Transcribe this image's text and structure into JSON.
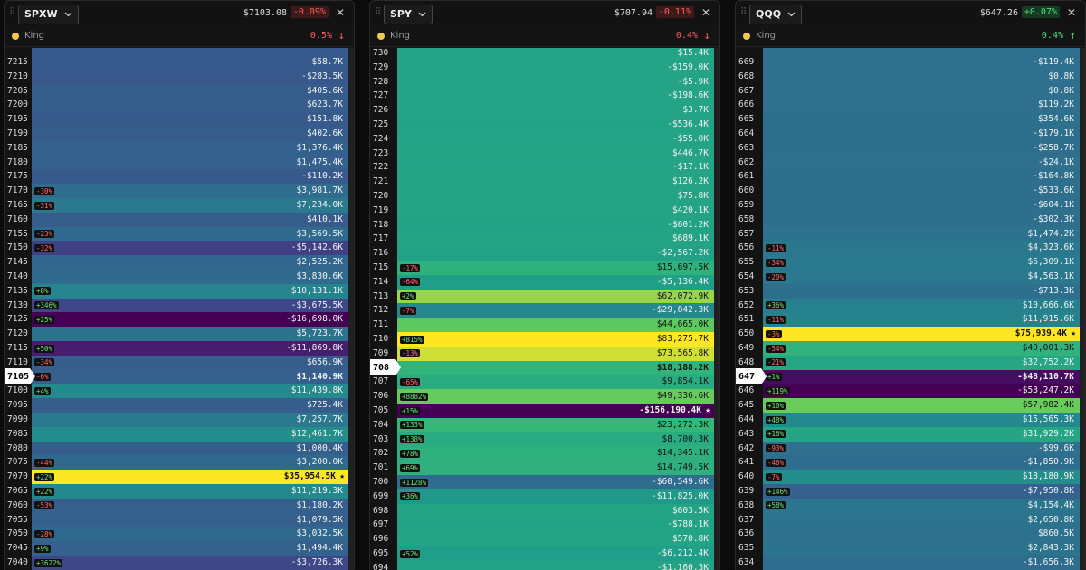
{
  "panels": [
    {
      "ticker": "SPXW",
      "price": "$7103.08",
      "change": "-0.09%",
      "change_dir": "down",
      "king_label": "King",
      "king_value": "0.5%",
      "king_arrow": "↓",
      "king_dir": "down",
      "rows": [
        {
          "strike": 7215,
          "value": "$58.7K"
        },
        {
          "strike": 7210,
          "value": "-$283.5K"
        },
        {
          "strike": 7205,
          "value": "$405.6K"
        },
        {
          "strike": 7200,
          "value": "$623.7K"
        },
        {
          "strike": 7195,
          "value": "$151.8K"
        },
        {
          "strike": 7190,
          "value": "$402.6K"
        },
        {
          "strike": 7185,
          "value": "$1,376.4K"
        },
        {
          "strike": 7180,
          "value": "$1,475.4K"
        },
        {
          "strike": 7175,
          "value": "-$110.2K"
        },
        {
          "strike": 7170,
          "pct": "-30%",
          "value": "$3,981.7K"
        },
        {
          "strike": 7165,
          "pct": "-31%",
          "value": "$7,234.0K"
        },
        {
          "strike": 7160,
          "value": "$410.1K"
        },
        {
          "strike": 7155,
          "pct": "-23%",
          "value": "$3,569.5K"
        },
        {
          "strike": 7150,
          "pct": "-32%",
          "value": "-$5,142.6K"
        },
        {
          "strike": 7145,
          "value": "$2,525.2K"
        },
        {
          "strike": 7140,
          "value": "$3,830.6K"
        },
        {
          "strike": 7135,
          "pct": "+8%",
          "value": "$10,131.1K"
        },
        {
          "strike": 7130,
          "pct": "+346%",
          "value": "-$3,675.5K"
        },
        {
          "strike": 7125,
          "pct": "+25%",
          "value": "-$16,698.0K"
        },
        {
          "strike": 7120,
          "value": "$5,723.7K"
        },
        {
          "strike": 7115,
          "pct": "+50%",
          "value": "-$11,869.8K"
        },
        {
          "strike": 7110,
          "pct": "-34%",
          "value": "$656.9K"
        },
        {
          "strike": 7105,
          "pct": "-6%",
          "value": "$1,140.9K",
          "current": true
        },
        {
          "strike": 7100,
          "pct": "+4%",
          "value": "$11,439.8K"
        },
        {
          "strike": 7095,
          "value": "$725.4K"
        },
        {
          "strike": 7090,
          "value": "$7,257.7K"
        },
        {
          "strike": 7085,
          "value": "$12,461.7K"
        },
        {
          "strike": 7080,
          "value": "$1,000.4K"
        },
        {
          "strike": 7075,
          "pct": "-44%",
          "value": "$3,200.0K"
        },
        {
          "strike": 7070,
          "pct": "+22%",
          "value": "$35,954.5K",
          "king": true
        },
        {
          "strike": 7065,
          "pct": "+22%",
          "value": "$11,219.3K"
        },
        {
          "strike": 7060,
          "pct": "-53%",
          "value": "$1,180.2K"
        },
        {
          "strike": 7055,
          "value": "$1,079.5K"
        },
        {
          "strike": 7050,
          "pct": "-28%",
          "value": "$3,032.5K"
        },
        {
          "strike": 7045,
          "pct": "+9%",
          "value": "$1,494.4K"
        },
        {
          "strike": 7040,
          "pct": "+3622%",
          "value": "-$3,726.3K"
        }
      ]
    },
    {
      "ticker": "SPY",
      "price": "$707.94",
      "change": "-0.11%",
      "change_dir": "down",
      "king_label": "King",
      "king_value": "0.4%",
      "king_arrow": "↓",
      "king_dir": "down",
      "rows": [
        {
          "strike": 730,
          "value": "$15.4K"
        },
        {
          "strike": 729,
          "value": "-$159.0K"
        },
        {
          "strike": 728,
          "value": "-$5.9K"
        },
        {
          "strike": 727,
          "value": "-$198.6K"
        },
        {
          "strike": 726,
          "value": "$3.7K"
        },
        {
          "strike": 725,
          "value": "-$536.4K"
        },
        {
          "strike": 724,
          "value": "-$55.0K"
        },
        {
          "strike": 723,
          "value": "$446.7K"
        },
        {
          "strike": 722,
          "value": "-$17.1K"
        },
        {
          "strike": 721,
          "value": "$126.2K"
        },
        {
          "strike": 720,
          "value": "$75.8K"
        },
        {
          "strike": 719,
          "value": "$420.1K"
        },
        {
          "strike": 718,
          "value": "-$601.2K"
        },
        {
          "strike": 717,
          "value": "$689.1K"
        },
        {
          "strike": 716,
          "value": "-$2,567.2K"
        },
        {
          "strike": 715,
          "pct": "-17%",
          "value": "$15,697.5K"
        },
        {
          "strike": 714,
          "pct": "-64%",
          "value": "-$5,136.4K"
        },
        {
          "strike": 713,
          "pct": "+2%",
          "value": "$62,072.9K"
        },
        {
          "strike": 712,
          "pct": "-7%",
          "value": "-$29,842.3K"
        },
        {
          "strike": 711,
          "value": "$44,665.0K"
        },
        {
          "strike": 710,
          "pct": "+815%",
          "value": "$83,275.7K"
        },
        {
          "strike": 709,
          "pct": "-13%",
          "value": "$73,565.8K"
        },
        {
          "strike": 708,
          "value": "$18,188.2K",
          "current": true
        },
        {
          "strike": 707,
          "pct": "-65%",
          "value": "$9,854.1K"
        },
        {
          "strike": 706,
          "pct": "+8882%",
          "value": "$49,336.6K"
        },
        {
          "strike": 705,
          "pct": "+15%",
          "value": "-$156,190.4K",
          "king": true
        },
        {
          "strike": 704,
          "pct": "+133%",
          "value": "$23,272.3K"
        },
        {
          "strike": 703,
          "pct": "+138%",
          "value": "$8,700.3K"
        },
        {
          "strike": 702,
          "pct": "+78%",
          "value": "$14,345.1K"
        },
        {
          "strike": 701,
          "pct": "+69%",
          "value": "$14,749.5K"
        },
        {
          "strike": 700,
          "pct": "+1128%",
          "value": "-$60,549.6K"
        },
        {
          "strike": 699,
          "pct": "+36%",
          "value": "-$11,825.0K"
        },
        {
          "strike": 698,
          "value": "$603.5K"
        },
        {
          "strike": 697,
          "value": "-$788.1K"
        },
        {
          "strike": 696,
          "value": "$570.8K"
        },
        {
          "strike": 695,
          "pct": "+52%",
          "value": "-$6,212.4K"
        },
        {
          "strike": 694,
          "value": "-$1,160.3K"
        }
      ]
    },
    {
      "ticker": "QQQ",
      "price": "$647.26",
      "change": "+0.07%",
      "change_dir": "up",
      "king_label": "King",
      "king_value": "0.4%",
      "king_arrow": "↑",
      "king_dir": "up",
      "rows": [
        {
          "strike": 669,
          "value": "-$119.4K"
        },
        {
          "strike": 668,
          "value": "$0.8K"
        },
        {
          "strike": 667,
          "value": "$0.8K"
        },
        {
          "strike": 666,
          "value": "$119.2K"
        },
        {
          "strike": 665,
          "value": "$354.6K"
        },
        {
          "strike": 664,
          "value": "-$179.1K"
        },
        {
          "strike": 663,
          "value": "-$258.7K"
        },
        {
          "strike": 662,
          "value": "-$24.1K"
        },
        {
          "strike": 661,
          "value": "-$164.8K"
        },
        {
          "strike": 660,
          "value": "-$533.6K"
        },
        {
          "strike": 659,
          "value": "-$604.1K"
        },
        {
          "strike": 658,
          "value": "-$302.3K"
        },
        {
          "strike": 657,
          "value": "$1,474.2K"
        },
        {
          "strike": 656,
          "pct": "-11%",
          "value": "$4,323.6K"
        },
        {
          "strike": 655,
          "pct": "-34%",
          "value": "$6,309.1K"
        },
        {
          "strike": 654,
          "pct": "-20%",
          "value": "$4,563.1K"
        },
        {
          "strike": 653,
          "value": "-$713.3K"
        },
        {
          "strike": 652,
          "pct": "+36%",
          "value": "$10,666.6K"
        },
        {
          "strike": 651,
          "pct": "-11%",
          "value": "$11,915.6K"
        },
        {
          "strike": 650,
          "pct": "-3%",
          "value": "$75,939.4K",
          "king": true
        },
        {
          "strike": 649,
          "pct": "-54%",
          "value": "$40,001.3K"
        },
        {
          "strike": 648,
          "pct": "-21%",
          "value": "$32,752.2K"
        },
        {
          "strike": 647,
          "pct": "+1%",
          "value": "-$48,110.7K",
          "current": true
        },
        {
          "strike": 646,
          "pct": "+119%",
          "value": "-$53,247.2K"
        },
        {
          "strike": 645,
          "pct": "+10%",
          "value": "$57,982.4K"
        },
        {
          "strike": 644,
          "pct": "+48%",
          "value": "$15,565.3K"
        },
        {
          "strike": 643,
          "pct": "+16%",
          "value": "$31,929.2K"
        },
        {
          "strike": 642,
          "pct": "-93%",
          "value": "-$99.6K"
        },
        {
          "strike": 641,
          "pct": "-46%",
          "value": "-$1,850.9K"
        },
        {
          "strike": 640,
          "pct": "-7%",
          "value": "$18,180.9K"
        },
        {
          "strike": 639,
          "pct": "+146%",
          "value": "-$7,950.8K"
        },
        {
          "strike": 638,
          "pct": "+58%",
          "value": "$4,154.4K"
        },
        {
          "strike": 637,
          "value": "$2,650.8K"
        },
        {
          "strike": 636,
          "value": "$860.5K"
        },
        {
          "strike": 635,
          "value": "$2,843.3K"
        },
        {
          "strike": 634,
          "value": "-$1,656.3K"
        }
      ]
    }
  ]
}
